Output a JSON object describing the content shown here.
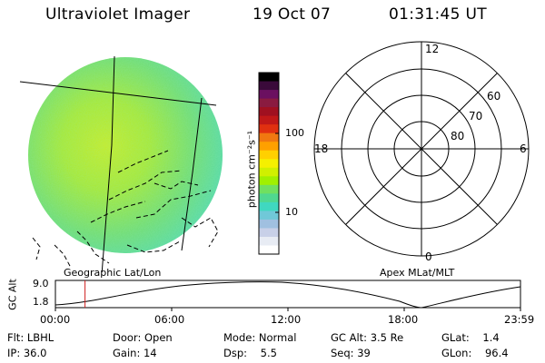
{
  "header": {
    "instrument": "Ultraviolet Imager",
    "date": "19 Oct 07",
    "time": "01:31:45 UT"
  },
  "colorbar": {
    "unit_label": "photon cm⁻²s⁻¹",
    "ticks": [
      "100",
      "10"
    ],
    "colors": [
      "#000000",
      "#3a0a3a",
      "#6b1060",
      "#8a1b40",
      "#a01020",
      "#c01818",
      "#e03010",
      "#f07810",
      "#ffa000",
      "#ffd000",
      "#f5f000",
      "#d0f000",
      "#a0f000",
      "#70e060",
      "#50d890",
      "#40d8c0",
      "#70c8d8",
      "#a0c0e0",
      "#c8d0e8",
      "#e8ecf4",
      "#ffffff"
    ]
  },
  "image_panel": {
    "label": "Geographic Lat/Lon"
  },
  "polar_plot": {
    "label": "Apex MLat/MLT",
    "mlt_labels": {
      "top": "12",
      "right": "6",
      "bottom": "0",
      "left": "18"
    },
    "lat_labels": [
      "60",
      "70",
      "80"
    ]
  },
  "altitude_plot": {
    "ylabel": "GC Alt",
    "ymax": "9.0",
    "ymin": "1.8",
    "time_ticks": [
      "00:00",
      "06:00",
      "12:00",
      "18:00",
      "23:59"
    ],
    "current_time_marker_hours": 1.53
  },
  "footer": {
    "row1": [
      {
        "label": "Flt:",
        "value": "LBHL"
      },
      {
        "label": "Door:",
        "value": "Open"
      },
      {
        "label": "Mode:",
        "value": "Normal"
      },
      {
        "label": "GC Alt:",
        "value": "3.5 Re"
      },
      {
        "label": "GLat:",
        "value": "1.4"
      }
    ],
    "row2": [
      {
        "label": "IP:",
        "value": "36.0"
      },
      {
        "label": "Gain:",
        "value": "14"
      },
      {
        "label": "Dsp:",
        "value": "5.5"
      },
      {
        "label": "Seq:",
        "value": "39"
      },
      {
        "label": "GLon:",
        "value": "96.4"
      }
    ]
  }
}
